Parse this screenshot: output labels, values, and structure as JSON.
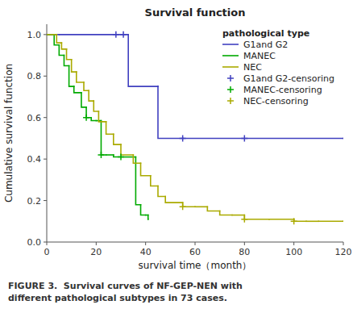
{
  "chart_data": {
    "type": "step",
    "title": "Survival function",
    "xlabel": "survival time（month）",
    "ylabel": "Cumulative survival function",
    "caption": "FIGURE 3.  Survival curves of NF-GEP-NEN with\ndifferent pathological subtypes in 73 cases.",
    "legend_title": "pathological type",
    "legend": "upper right",
    "grid": false,
    "xlim": [
      0,
      120
    ],
    "ylim": [
      0.0,
      1.05
    ],
    "xticks": [
      0,
      20,
      40,
      60,
      80,
      100,
      120
    ],
    "yticks": [
      {
        "value": 0.0,
        "label": "0.0"
      },
      0.2,
      0.4,
      0.6,
      0.8,
      {
        "value": 1.0,
        "label": "1.0"
      }
    ],
    "series": [
      {
        "name": "G1and G2",
        "type": "step",
        "color": "#4040c0",
        "x": [
          0,
          5,
          33,
          33,
          45,
          45,
          55,
          55,
          120
        ],
        "values": [
          1.0,
          1.0,
          1.0,
          0.75,
          0.75,
          0.5,
          0.5,
          0.5,
          0.5
        ]
      },
      {
        "name": "MANEC",
        "type": "step",
        "color": "#00aa00",
        "x": [
          0,
          3,
          5,
          7,
          9,
          11,
          14,
          16,
          18,
          20,
          22,
          24,
          27,
          30,
          36,
          38,
          40,
          41,
          41
        ],
        "values": [
          1.0,
          0.95,
          0.9,
          0.85,
          0.75,
          0.72,
          0.65,
          0.6,
          0.585,
          0.585,
          0.42,
          0.42,
          0.41,
          0.41,
          0.18,
          0.13,
          0.13,
          0.11,
          0.11
        ]
      },
      {
        "name": "NEC",
        "type": "step",
        "color": "#aaaa00",
        "x": [
          0,
          4,
          6,
          8,
          10,
          12,
          15,
          17,
          19,
          21,
          24,
          27,
          30,
          35,
          38,
          42,
          45,
          48,
          55,
          60,
          65,
          70,
          75,
          80,
          90,
          100,
          105,
          110,
          120
        ],
        "values": [
          1.0,
          0.96,
          0.93,
          0.88,
          0.82,
          0.77,
          0.73,
          0.68,
          0.63,
          0.58,
          0.52,
          0.47,
          0.42,
          0.38,
          0.32,
          0.27,
          0.22,
          0.19,
          0.17,
          0.17,
          0.15,
          0.13,
          0.13,
          0.11,
          0.11,
          0.1,
          0.1,
          0.1,
          0.1
        ]
      },
      {
        "name": "G1and G2-censoring",
        "type": "scatter",
        "marker": "plus",
        "color": "#4040c0",
        "x": [
          28,
          31,
          55,
          80
        ],
        "values": [
          1.0,
          1.0,
          0.5,
          0.5
        ]
      },
      {
        "name": "MANEC-censoring",
        "type": "scatter",
        "marker": "plus",
        "color": "#00aa00",
        "x": [
          16,
          22,
          30
        ],
        "values": [
          0.6,
          0.42,
          0.41
        ]
      },
      {
        "name": "NEC-censoring",
        "type": "scatter",
        "marker": "plus",
        "color": "#aaaa00",
        "x": [
          55,
          80,
          100
        ],
        "values": [
          0.17,
          0.11,
          0.1
        ]
      }
    ]
  }
}
